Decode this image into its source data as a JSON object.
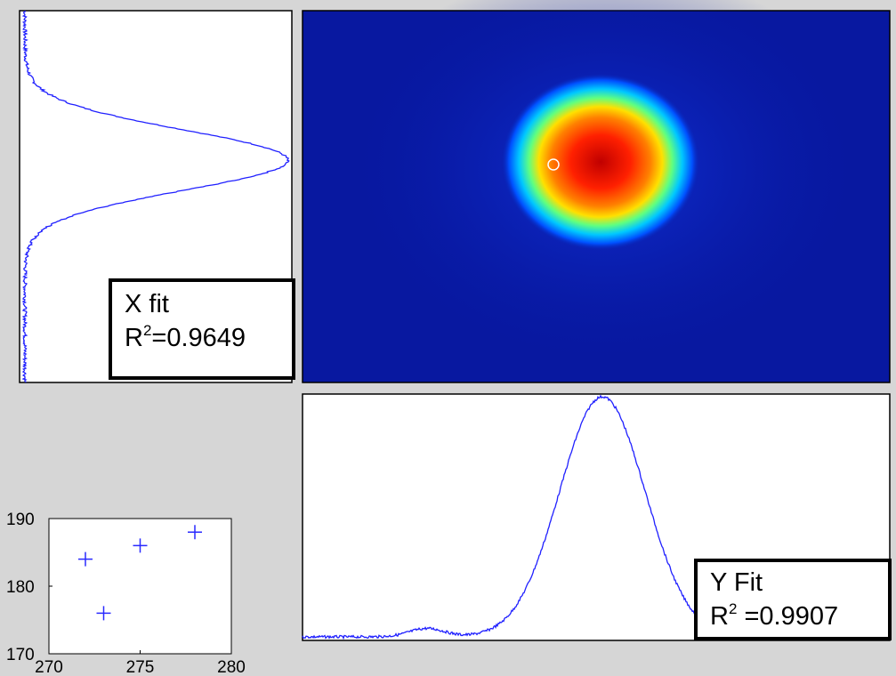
{
  "x_fit": {
    "label": "X fit",
    "r2_symbol": "R",
    "r2_exponent": "2",
    "r2_value": "=0.9649"
  },
  "y_fit": {
    "label": "Y Fit",
    "r2_symbol": "R",
    "r2_exponent": "2",
    "r2_value": " =0.9907"
  },
  "chart_data": {
    "type": "scatter",
    "x": [
      272,
      273,
      275,
      278
    ],
    "values": [
      184,
      176,
      186,
      188
    ],
    "color": "#2a2aff",
    "xlim": [
      270,
      280
    ],
    "xticks": [
      270,
      275,
      280
    ],
    "ylim": [
      170,
      190
    ],
    "yticks": [
      170,
      180,
      190
    ]
  }
}
